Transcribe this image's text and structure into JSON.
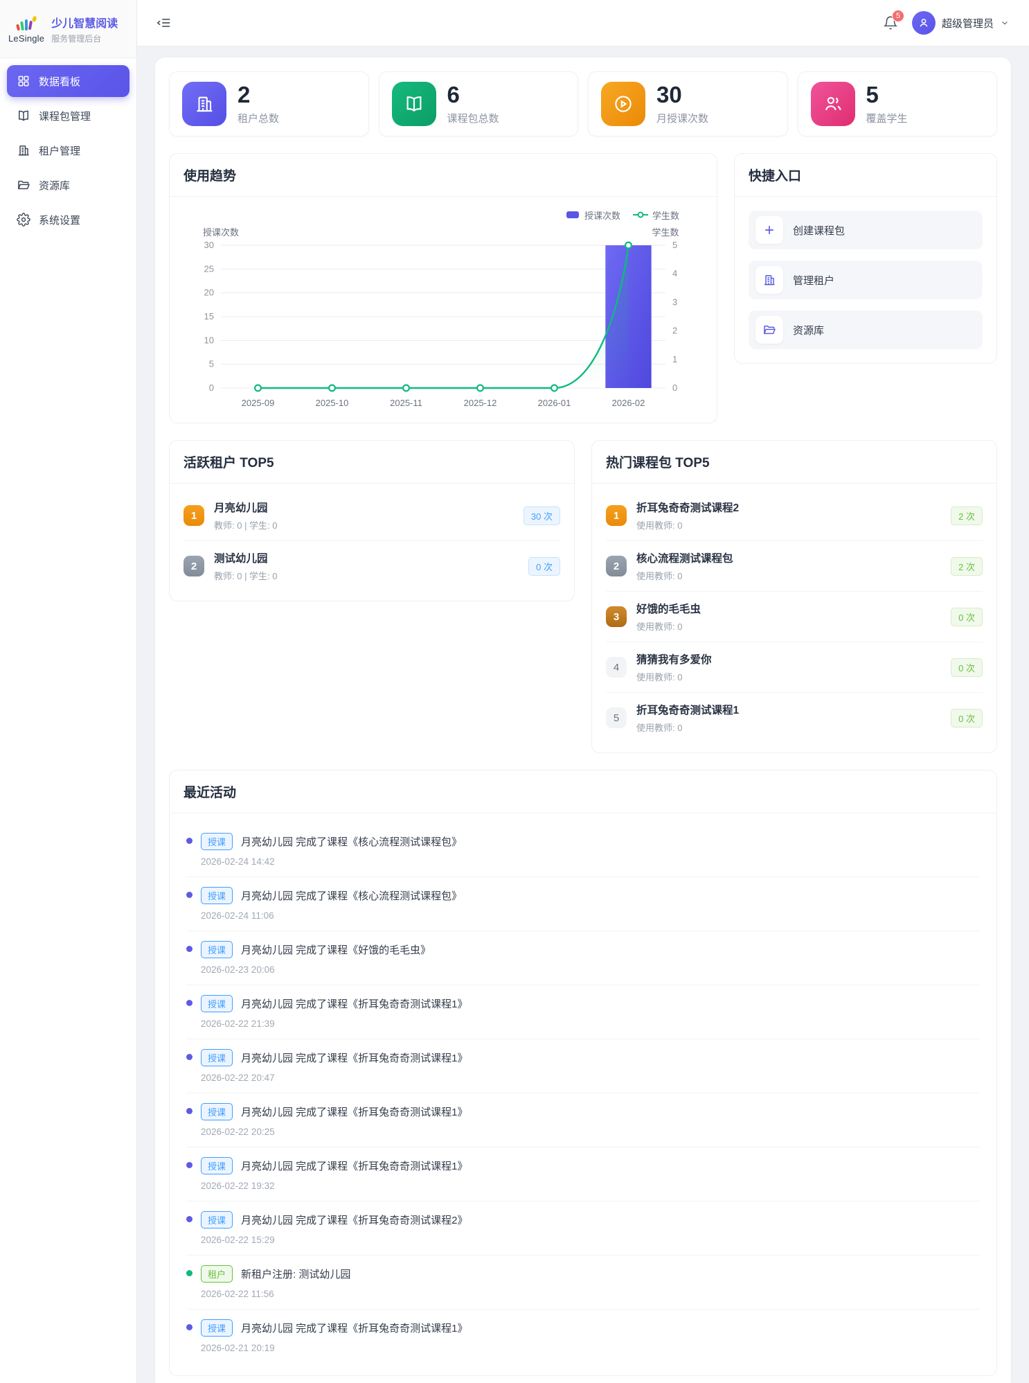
{
  "colors": {
    "accent": "#5b5ce2",
    "success": "#10b981",
    "warning": "#f5980c",
    "pink": "#e8347a",
    "tag_blue": "#409eff",
    "tag_green": "#67c23a",
    "danger": "#f56c6c"
  },
  "sidebar": {
    "logo_text": "LeSingle",
    "brand_title": "少儿智慧阅读",
    "brand_subtitle": "服务管理后台",
    "items": [
      {
        "label": "数据看板",
        "icon": "dashboard-icon",
        "active": true
      },
      {
        "label": "课程包管理",
        "icon": "book-icon",
        "active": false
      },
      {
        "label": "租户管理",
        "icon": "building-icon",
        "active": false
      },
      {
        "label": "资源库",
        "icon": "folder-icon",
        "active": false
      },
      {
        "label": "系统设置",
        "icon": "gear-icon",
        "active": false
      }
    ]
  },
  "header": {
    "notification_count": "5",
    "user_name": "超级管理员"
  },
  "stats": [
    {
      "value": "2",
      "label": "租户总数",
      "icon": "building-icon"
    },
    {
      "value": "6",
      "label": "课程包总数",
      "icon": "book-icon"
    },
    {
      "value": "30",
      "label": "月授课次数",
      "icon": "play-circle-icon"
    },
    {
      "value": "5",
      "label": "覆盖学生",
      "icon": "users-icon"
    }
  ],
  "trend": {
    "title": "使用趋势"
  },
  "chart_data": {
    "type": "bar+line",
    "title": "使用趋势",
    "categories": [
      "2025-09",
      "2025-10",
      "2025-11",
      "2025-12",
      "2026-01",
      "2026-02"
    ],
    "series": [
      {
        "name": "授课次数",
        "type": "bar",
        "axis": "left",
        "values": [
          0,
          0,
          0,
          0,
          0,
          30
        ],
        "color": "#5b55e3"
      },
      {
        "name": "学生数",
        "type": "line",
        "axis": "right",
        "values": [
          0,
          0,
          0,
          0,
          0,
          5
        ],
        "color": "#10b981"
      }
    ],
    "left_axis": {
      "name": "授课次数",
      "min": 0,
      "max": 30,
      "ticks": [
        0,
        5,
        10,
        15,
        20,
        25,
        30
      ]
    },
    "right_axis": {
      "name": "学生数",
      "min": 0,
      "max": 5,
      "ticks": [
        0,
        1,
        2,
        3,
        4,
        5
      ]
    },
    "grid": true,
    "legend_position": "top-right"
  },
  "quick": {
    "title": "快捷入口",
    "items": [
      {
        "label": "创建课程包",
        "icon": "plus-icon"
      },
      {
        "label": "管理租户",
        "icon": "building-icon"
      },
      {
        "label": "资源库",
        "icon": "folder-icon"
      }
    ]
  },
  "top_tenants": {
    "title": "活跃租户 TOP5",
    "items": [
      {
        "rank": 1,
        "name": "月亮幼儿园",
        "meta": "教师: 0 | 学生: 0",
        "count": "30 次"
      },
      {
        "rank": 2,
        "name": "测试幼儿园",
        "meta": "教师: 0 | 学生: 0",
        "count": "0 次"
      }
    ]
  },
  "top_courses": {
    "title": "热门课程包 TOP5",
    "items": [
      {
        "rank": 1,
        "name": "折耳兔奇奇测试课程2",
        "meta": "使用教师: 0",
        "count": "2 次"
      },
      {
        "rank": 2,
        "name": "核心流程测试课程包",
        "meta": "使用教师: 0",
        "count": "2 次"
      },
      {
        "rank": 3,
        "name": "好饿的毛毛虫",
        "meta": "使用教师: 0",
        "count": "0 次"
      },
      {
        "rank": 4,
        "name": "猜猜我有多爱你",
        "meta": "使用教师: 0",
        "count": "0 次"
      },
      {
        "rank": 5,
        "name": "折耳兔奇奇测试课程1",
        "meta": "使用教师: 0",
        "count": "0 次"
      }
    ]
  },
  "activities": {
    "title": "最近活动",
    "items": [
      {
        "type": "lesson",
        "tag": "授课",
        "text": "月亮幼儿园 完成了课程《核心流程测试课程包》",
        "time": "2026-02-24 14:42"
      },
      {
        "type": "lesson",
        "tag": "授课",
        "text": "月亮幼儿园 完成了课程《核心流程测试课程包》",
        "time": "2026-02-24 11:06"
      },
      {
        "type": "lesson",
        "tag": "授课",
        "text": "月亮幼儿园 完成了课程《好饿的毛毛虫》",
        "time": "2026-02-23 20:06"
      },
      {
        "type": "lesson",
        "tag": "授课",
        "text": "月亮幼儿园 完成了课程《折耳兔奇奇测试课程1》",
        "time": "2026-02-22 21:39"
      },
      {
        "type": "lesson",
        "tag": "授课",
        "text": "月亮幼儿园 完成了课程《折耳兔奇奇测试课程1》",
        "time": "2026-02-22 20:47"
      },
      {
        "type": "lesson",
        "tag": "授课",
        "text": "月亮幼儿园 完成了课程《折耳兔奇奇测试课程1》",
        "time": "2026-02-22 20:25"
      },
      {
        "type": "lesson",
        "tag": "授课",
        "text": "月亮幼儿园 完成了课程《折耳兔奇奇测试课程1》",
        "time": "2026-02-22 19:32"
      },
      {
        "type": "lesson",
        "tag": "授课",
        "text": "月亮幼儿园 完成了课程《折耳兔奇奇测试课程2》",
        "time": "2026-02-22 15:29"
      },
      {
        "type": "tenant",
        "tag": "租户",
        "text": "新租户注册: 测试幼儿园",
        "time": "2026-02-22 11:56"
      },
      {
        "type": "lesson",
        "tag": "授课",
        "text": "月亮幼儿园 完成了课程《折耳兔奇奇测试课程1》",
        "time": "2026-02-21 20:19"
      }
    ]
  }
}
